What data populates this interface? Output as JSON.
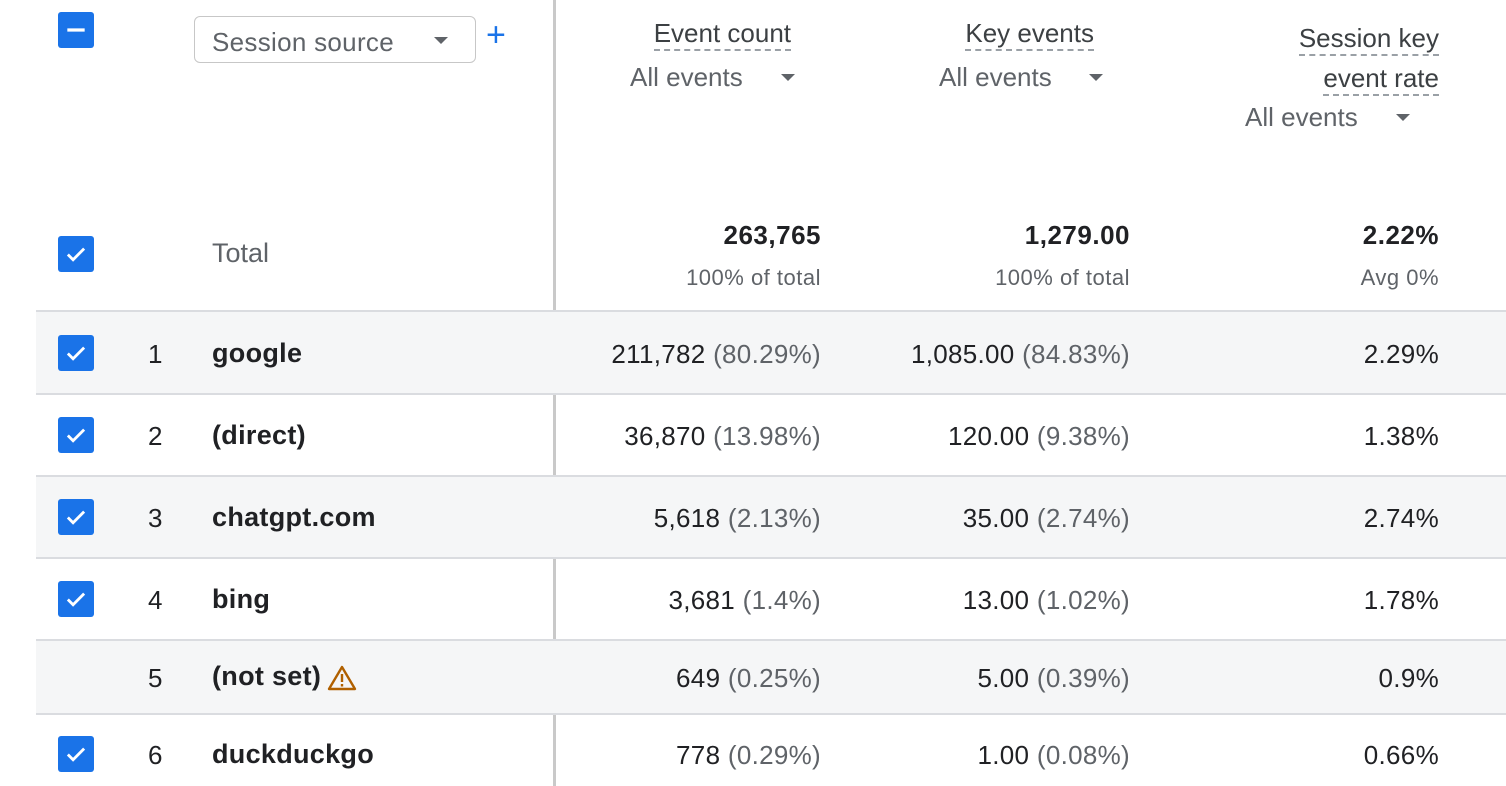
{
  "dimension": {
    "label": "Session source",
    "add_label": "+"
  },
  "metrics": [
    {
      "title": "Event count",
      "filter": "All events"
    },
    {
      "title": "Key events",
      "filter": "All events"
    },
    {
      "title_line1": "Session key",
      "title_line2": "event rate",
      "filter": "All events"
    }
  ],
  "totals": {
    "label": "Total",
    "event_count": "263,765",
    "event_count_sub": "100% of total",
    "key_events": "1,279.00",
    "key_events_sub": "100% of total",
    "rate": "2.22%",
    "rate_sub": "Avg 0%"
  },
  "rows": [
    {
      "rank": "1",
      "source": "google",
      "checked": true,
      "ec": "211,782",
      "ec_pct": "(80.29%)",
      "ke": "1,085.00",
      "ke_pct": "(84.83%)",
      "rate": "2.29%"
    },
    {
      "rank": "2",
      "source": "(direct)",
      "checked": true,
      "ec": "36,870",
      "ec_pct": "(13.98%)",
      "ke": "120.00",
      "ke_pct": "(9.38%)",
      "rate": "1.38%"
    },
    {
      "rank": "3",
      "source": "chatgpt.com",
      "checked": true,
      "ec": "5,618",
      "ec_pct": "(2.13%)",
      "ke": "35.00",
      "ke_pct": "(2.74%)",
      "rate": "2.74%"
    },
    {
      "rank": "4",
      "source": "bing",
      "checked": true,
      "ec": "3,681",
      "ec_pct": "(1.4%)",
      "ke": "13.00",
      "ke_pct": "(1.02%)",
      "rate": "1.78%"
    },
    {
      "rank": "5",
      "source": "(not set)",
      "checked": false,
      "warning": true,
      "ec": "649",
      "ec_pct": "(0.25%)",
      "ke": "5.00",
      "ke_pct": "(0.39%)",
      "rate": "0.9%"
    },
    {
      "rank": "6",
      "source": "duckduckgo",
      "checked": true,
      "ec": "778",
      "ec_pct": "(0.29%)",
      "ke": "1.00",
      "ke_pct": "(0.08%)",
      "rate": "0.66%"
    }
  ],
  "colors": {
    "accent": "#1a73e8",
    "warning": "#b06000",
    "row_shade": "#f5f6f7"
  },
  "icons": {
    "header_checkbox": "indeterminate-checkbox-icon",
    "row_checkbox": "checked-checkbox-icon",
    "warning": "warning-triangle-icon",
    "caret": "caret-down-icon"
  }
}
